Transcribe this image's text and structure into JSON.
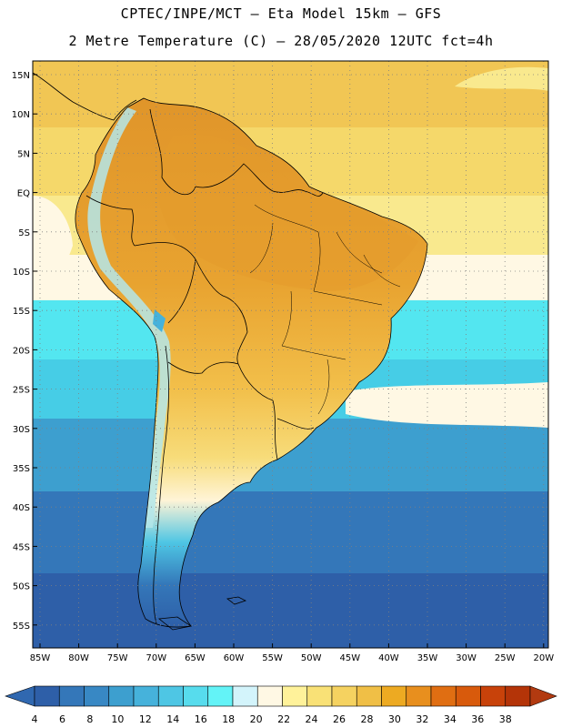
{
  "header": {
    "line1": "CPTEC/INPE/MCT –  Eta Model 15km – GFS",
    "line2": "2 Metre Temperature (C) – 28/05/2020 12UTC fct=4h"
  },
  "map": {
    "lat_labels": [
      "15N",
      "10N",
      "5N",
      "EQ",
      "5S",
      "10S",
      "15S",
      "20S",
      "25S",
      "30S",
      "35S",
      "40S",
      "45S",
      "50S",
      "55S"
    ],
    "lon_labels": [
      "85W",
      "80W",
      "75W",
      "70W",
      "65W",
      "60W",
      "55W",
      "50W",
      "45W",
      "40W",
      "35W",
      "30W",
      "25W",
      "20W"
    ],
    "ocean_bands": [
      {
        "temp": 28,
        "color": "#f1c654"
      },
      {
        "temp": 26,
        "color": "#f5d86a"
      },
      {
        "temp": 24,
        "color": "#f9e98e"
      },
      {
        "temp": 22,
        "color": "#fff8e4"
      },
      {
        "temp": 18,
        "color": "#53e6f0"
      },
      {
        "temp": 14,
        "color": "#46cde6"
      },
      {
        "temp": 10,
        "color": "#3d9fcf"
      },
      {
        "temp": 6,
        "color": "#3477b9"
      },
      {
        "temp": 4,
        "color": "#2e5fa8"
      }
    ],
    "land_colors": {
      "hot": "#e8a330",
      "mid": "#f2bf4a",
      "warm": "#f5d86a",
      "cool": "#3d9fcf",
      "cold": "#2e5fa8",
      "andes": "#b4e6ea"
    }
  },
  "colorbar": {
    "labels": [
      "4",
      "6",
      "8",
      "10",
      "12",
      "14",
      "16",
      "18",
      "20",
      "22",
      "24",
      "26",
      "28",
      "30",
      "32",
      "34",
      "36",
      "38"
    ],
    "colors": [
      "#2e5fa8",
      "#3477b9",
      "#3888c4",
      "#3d9fcf",
      "#46b2db",
      "#4ec6e4",
      "#57dced",
      "#63f3f7",
      "#d3f4fb",
      "#fff8e4",
      "#fff29a",
      "#f9e176",
      "#f5d260",
      "#f0bf46",
      "#edaa22",
      "#e88f1e",
      "#e06e12",
      "#d85a0c",
      "#c8420a",
      "#b43408"
    ],
    "under_color": "#3068b0",
    "over_color": "#b23a10"
  }
}
